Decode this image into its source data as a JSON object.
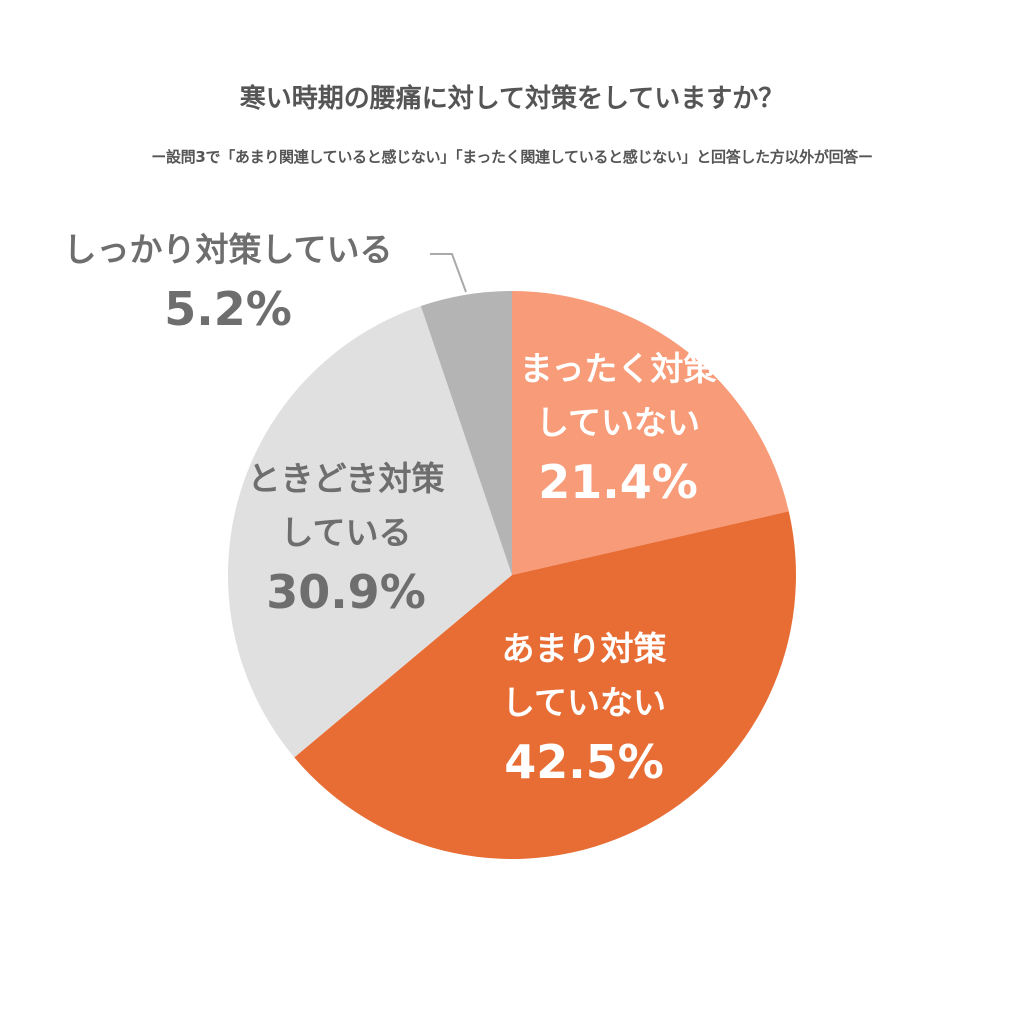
{
  "chart_data": {
    "type": "pie",
    "title": "寒い時期の腰痛に対して対策をしていますか？",
    "subtitle": "ー設問3で「あまり関連していると感じない」「まったく関連していると感じない」と回答した方以外が回答ー",
    "categories": [
      "まったく対策\nしていない",
      "あまり対策\nしていない",
      "ときどき対策\nしている",
      "しっかり対策している"
    ],
    "values": [
      21.4,
      42.5,
      30.9,
      5.2
    ],
    "value_labels": [
      "21.4%",
      "42.5%",
      "30.9%",
      "5.2%"
    ],
    "colors": [
      "#f79b78",
      "#e86d35",
      "#e0e0e0",
      "#b4b4b4"
    ]
  }
}
